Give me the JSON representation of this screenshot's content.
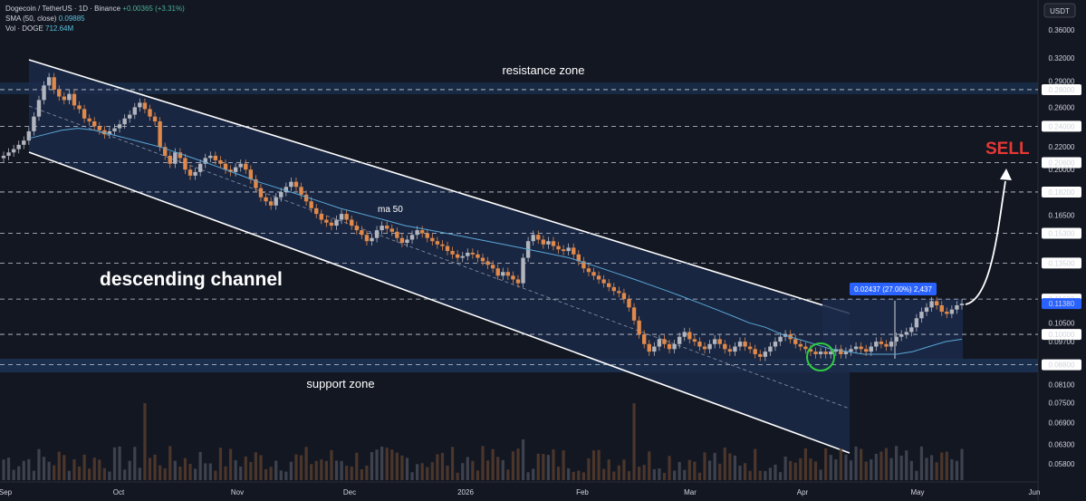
{
  "legend": {
    "symbol_line": "Dogecoin / TetherUS · 1D · Binance",
    "change": "+0.00365 (+3.31%)",
    "sma_label": "SMA (50, close)",
    "sma_value": "0.09885",
    "vol_label": "Vol · DOGE",
    "vol_value": "712.64M"
  },
  "currency_button": "USDT",
  "annotations": {
    "resistance": "resistance zone",
    "support": "support zone",
    "channel": "descending channel",
    "ma": "ma 50",
    "sell": "SELL",
    "measure": "0.02437 (27.00%) 2,437"
  },
  "colors": {
    "background": "#131722",
    "up": "#b2b5be",
    "down": "#e0894a",
    "sma": "#5aa7d6",
    "channel_fill": "#1b2a4a",
    "zone_fill": "#1e3a5f",
    "sell": "#e53935",
    "highlight_circle": "#2ecc40",
    "measure_box": "#2962ff"
  },
  "chart_data": {
    "type": "candlestick",
    "scale": "log",
    "y_ticks": [
      "0.36000",
      "0.32000",
      "0.29000",
      "0.28000",
      "0.26000",
      "0.24000",
      "0.22000",
      "0.20600",
      "0.20000",
      "0.18200",
      "0.16500",
      "0.15300",
      "0.13500",
      "0.11600",
      "0.11380",
      "0.10500",
      "0.10000",
      "0.09700",
      "0.08800",
      "0.08100",
      "0.07500",
      "0.06900",
      "0.06300",
      "0.05800"
    ],
    "price_labels_boxed": [
      "0.28000",
      "0.24000",
      "0.20600",
      "0.18200",
      "0.15300",
      "0.13500",
      "0.11600",
      "0.10000",
      "0.08800"
    ],
    "last_price": "0.11380",
    "x_ticks": [
      "Sep",
      "Oct",
      "Nov",
      "Dec",
      "2026",
      "Feb",
      "Mar",
      "Apr",
      "May",
      "Jun"
    ],
    "resistance_zone": [
      0.278,
      0.283
    ],
    "support_zone": [
      0.087,
      0.0885
    ],
    "key_levels": [
      0.28,
      0.24,
      0.206,
      0.182,
      0.153,
      0.135,
      0.116,
      0.1,
      0.088
    ],
    "closes": [
      0.212,
      0.215,
      0.218,
      0.222,
      0.226,
      0.235,
      0.25,
      0.268,
      0.285,
      0.295,
      0.28,
      0.272,
      0.268,
      0.275,
      0.262,
      0.258,
      0.248,
      0.245,
      0.24,
      0.236,
      0.232,
      0.235,
      0.238,
      0.242,
      0.248,
      0.252,
      0.26,
      0.265,
      0.258,
      0.25,
      0.245,
      0.22,
      0.212,
      0.205,
      0.215,
      0.21,
      0.2,
      0.195,
      0.198,
      0.205,
      0.21,
      0.212,
      0.208,
      0.205,
      0.2,
      0.198,
      0.202,
      0.205,
      0.2,
      0.192,
      0.185,
      0.178,
      0.175,
      0.172,
      0.178,
      0.182,
      0.186,
      0.19,
      0.186,
      0.18,
      0.175,
      0.17,
      0.166,
      0.162,
      0.16,
      0.158,
      0.162,
      0.166,
      0.162,
      0.158,
      0.155,
      0.152,
      0.148,
      0.15,
      0.155,
      0.158,
      0.156,
      0.154,
      0.15,
      0.147,
      0.149,
      0.152,
      0.155,
      0.153,
      0.15,
      0.148,
      0.146,
      0.145,
      0.142,
      0.14,
      0.138,
      0.139,
      0.141,
      0.14,
      0.138,
      0.136,
      0.134,
      0.132,
      0.128,
      0.13,
      0.128,
      0.126,
      0.124,
      0.138,
      0.148,
      0.152,
      0.149,
      0.146,
      0.148,
      0.145,
      0.143,
      0.142,
      0.144,
      0.14,
      0.136,
      0.132,
      0.13,
      0.128,
      0.126,
      0.124,
      0.122,
      0.12,
      0.119,
      0.116,
      0.112,
      0.106,
      0.1,
      0.096,
      0.093,
      0.095,
      0.098,
      0.096,
      0.094,
      0.096,
      0.099,
      0.101,
      0.098,
      0.097,
      0.095,
      0.094,
      0.096,
      0.098,
      0.096,
      0.094,
      0.093,
      0.095,
      0.097,
      0.095,
      0.094,
      0.092,
      0.091,
      0.093,
      0.095,
      0.097,
      0.099,
      0.1,
      0.098,
      0.096,
      0.095,
      0.094,
      0.093,
      0.092,
      0.093,
      0.092,
      0.093,
      0.094,
      0.092,
      0.093,
      0.094,
      0.095,
      0.094,
      0.093,
      0.095,
      0.097,
      0.096,
      0.095,
      0.097,
      0.099,
      0.1,
      0.101,
      0.103,
      0.107,
      0.11,
      0.112,
      0.115,
      0.113,
      0.11,
      0.109,
      0.111,
      0.113,
      0.1138
    ],
    "sma_50": [
      0.228,
      0.232,
      0.236,
      0.238,
      0.236,
      0.232,
      0.228,
      0.224,
      0.22,
      0.215,
      0.21,
      0.205,
      0.2,
      0.195,
      0.19,
      0.186,
      0.182,
      0.178,
      0.174,
      0.17,
      0.167,
      0.164,
      0.161,
      0.158,
      0.156,
      0.154,
      0.152,
      0.15,
      0.148,
      0.146,
      0.144,
      0.142,
      0.14,
      0.138,
      0.135,
      0.132,
      0.129,
      0.126,
      0.123,
      0.12,
      0.117,
      0.114,
      0.111,
      0.108,
      0.105,
      0.103,
      0.1,
      0.098,
      0.096,
      0.094,
      0.093,
      0.092,
      0.092,
      0.092,
      0.093,
      0.095,
      0.097,
      0.098
    ]
  }
}
